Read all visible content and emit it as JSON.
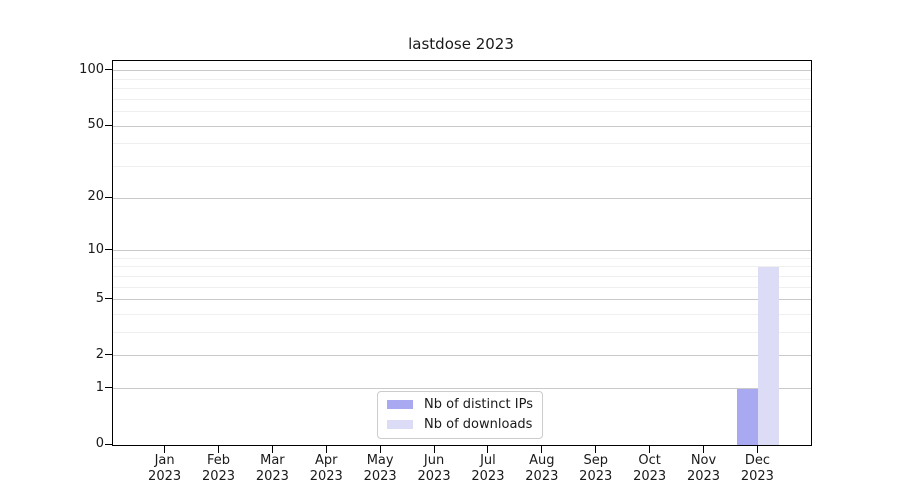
{
  "page": {
    "background": "#ffffff"
  },
  "chart_data": {
    "type": "bar",
    "title": "lastdose 2023",
    "categories": [
      "Jan",
      "Feb",
      "Mar",
      "Apr",
      "May",
      "Jun",
      "Jul",
      "Aug",
      "Sep",
      "Oct",
      "Nov",
      "Dec"
    ],
    "category_year": "2023",
    "series": [
      {
        "name": "Nb of distinct IPs",
        "color": "#a9a9f2",
        "values": [
          0,
          0,
          0,
          0,
          0,
          0,
          0,
          0,
          0,
          0,
          0,
          1
        ]
      },
      {
        "name": "Nb of downloads",
        "color": "#dcdcf7",
        "values": [
          0,
          0,
          0,
          0,
          0,
          0,
          0,
          0,
          0,
          0,
          0,
          8
        ]
      }
    ],
    "xlabel": "",
    "ylabel": "",
    "yscale": "log1p",
    "ylim": [
      0,
      113
    ],
    "yticks": [
      0,
      1,
      2,
      5,
      10,
      20,
      50,
      100
    ],
    "yticks_minor": [
      3,
      4,
      6,
      7,
      8,
      9,
      30,
      40,
      60,
      70,
      80,
      90
    ],
    "grid": "horizontal",
    "legend_position": "bottom-center"
  },
  "colors": {
    "major_grid": "#c9c9c9",
    "minor_grid": "#efefef",
    "spine": "#000000",
    "text": "#1a1a1a",
    "legend_border": "#cccccc",
    "legend_bg": "#ffffff"
  }
}
